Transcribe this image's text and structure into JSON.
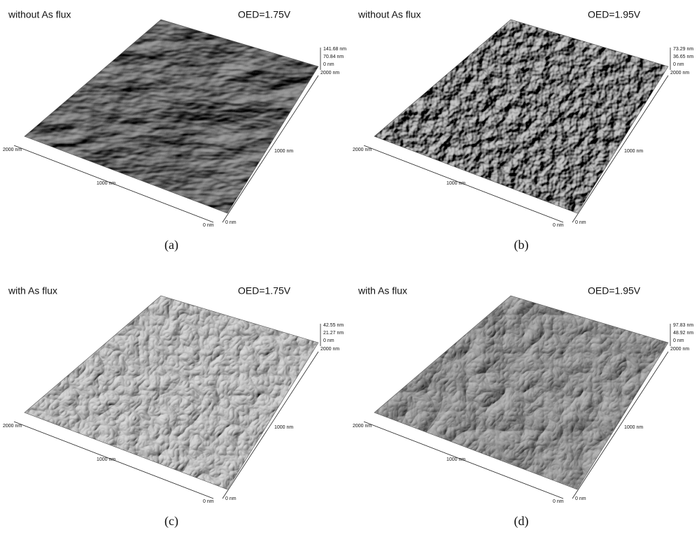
{
  "panels": [
    {
      "condition": "without As flux",
      "oed": "OED=1.75V",
      "scale": [
        "141.68 nm",
        "70.84 nm",
        "0 nm"
      ],
      "x_axis": [
        "2000 nm",
        "1000 nm",
        "0 nm"
      ],
      "y_axis": [
        "0 nm",
        "1000 nm",
        "2000 nm"
      ],
      "caption": "(a)"
    },
    {
      "condition": "without As flux",
      "oed": "OED=1.95V",
      "scale": [
        "73.29 nm",
        "36.65 nm",
        "0 nm"
      ],
      "x_axis": [
        "2000 nm",
        "1000 nm",
        "0 nm"
      ],
      "y_axis": [
        "0 nm",
        "1000 nm",
        "2000 nm"
      ],
      "caption": "(b)"
    },
    {
      "condition": "with As flux",
      "oed": "OED=1.75V",
      "scale": [
        "42.55 nm",
        "21.27 nm",
        "0 nm"
      ],
      "x_axis": [
        "2000 nm",
        "1000 nm",
        "0 nm"
      ],
      "y_axis": [
        "0 nm",
        "1000 nm",
        "2000 nm"
      ],
      "caption": "(c)"
    },
    {
      "condition": "with As flux",
      "oed": "OED=1.95V",
      "scale": [
        "97.83 nm",
        "48.92 nm",
        "0 nm"
      ],
      "x_axis": [
        "2000 nm",
        "1000 nm",
        "0 nm"
      ],
      "y_axis": [
        "0 nm",
        "1000 nm",
        "2000 nm"
      ],
      "caption": "(d)"
    }
  ]
}
